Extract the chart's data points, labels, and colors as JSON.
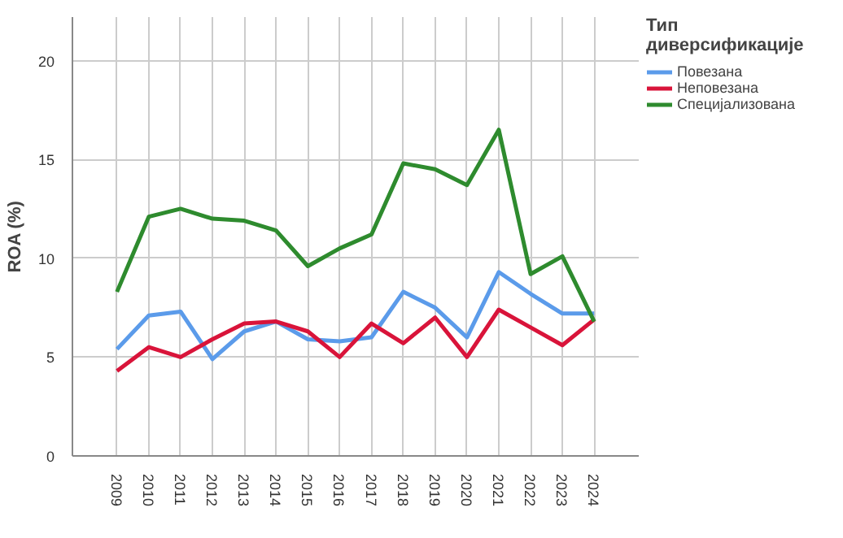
{
  "chart_data": {
    "type": "line",
    "ylabel": "ROA (%)",
    "legend_title": "Тип\nдиверсификације",
    "categories": [
      "2009",
      "2010",
      "2011",
      "2012",
      "2013",
      "2014",
      "2015",
      "2016",
      "2017",
      "2018",
      "2019",
      "2020",
      "2021",
      "2022",
      "2023",
      "2024"
    ],
    "series": [
      {
        "name": "Повезана",
        "color": "#5b9bea",
        "values": [
          5.4,
          7.1,
          7.3,
          4.9,
          6.3,
          6.8,
          5.9,
          5.8,
          6.0,
          8.3,
          7.5,
          6.0,
          9.3,
          8.2,
          7.2,
          7.2
        ]
      },
      {
        "name": "Неповезана",
        "color": "#d9143a",
        "values": [
          4.3,
          5.5,
          5.0,
          5.9,
          6.7,
          6.8,
          6.3,
          5.0,
          6.7,
          5.7,
          7.0,
          5.0,
          7.4,
          6.5,
          5.6,
          6.9
        ]
      },
      {
        "name": "Специјализована",
        "color": "#2e8b2e",
        "values": [
          8.3,
          12.1,
          12.5,
          12.0,
          11.9,
          11.4,
          9.6,
          10.5,
          11.2,
          14.8,
          14.5,
          13.7,
          16.5,
          9.2,
          10.1,
          6.8
        ]
      }
    ],
    "ylim": [
      0,
      22.2
    ],
    "yticks": [
      0,
      5,
      10,
      15,
      20
    ],
    "grid": true,
    "legend": "right",
    "line_style": "solid"
  }
}
